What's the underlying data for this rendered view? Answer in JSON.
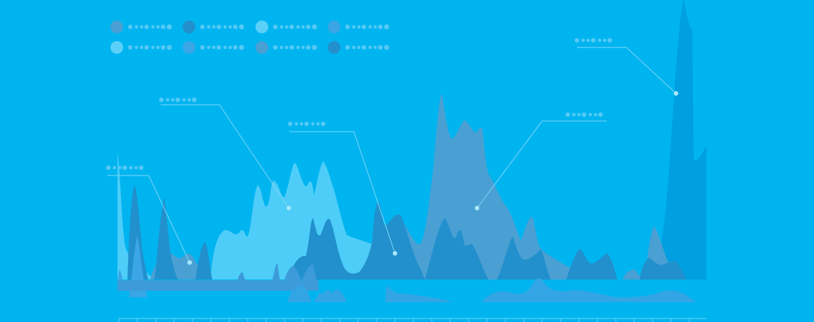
{
  "colors": {
    "background": "#00b4f0",
    "light_area": "#4dcdf8",
    "mid_area": "#4aa0d3",
    "dark_area": "#2290cc",
    "deep_area": "#009fe0",
    "blue_low": "#3aa6e6",
    "baseline_bar": "#3d9bd9",
    "legend_dots": "#55c9f5",
    "callout_line": "#7fd7f7"
  },
  "legend": {
    "items": [
      {
        "color": "#4aa0d3"
      },
      {
        "color": "#2290cc"
      },
      {
        "color": "#5bd0f8"
      },
      {
        "color": "#3aa6e6"
      },
      {
        "color": "#5bd0f8"
      },
      {
        "color": "#3aa6e6"
      },
      {
        "color": "#4aa0d3"
      },
      {
        "color": "#2290cc"
      }
    ]
  },
  "chart_data": {
    "type": "area",
    "title": "",
    "xlabel": "",
    "ylabel": "",
    "grid": false,
    "legend_placement": "top-left",
    "x": [
      1,
      2,
      3,
      4,
      5,
      6,
      7,
      8,
      9,
      10,
      11,
      12,
      13,
      14,
      15,
      16,
      17,
      18,
      19,
      20,
      21,
      22,
      23,
      24,
      25,
      26,
      27,
      28,
      29,
      30,
      31,
      32,
      33
    ],
    "ylim": [
      0,
      100
    ],
    "series": [
      {
        "color": "#4dcdf8",
        "values": [
          50,
          8,
          2,
          5,
          3,
          8,
          20,
          34,
          22,
          42,
          40,
          22,
          16,
          8,
          0,
          0,
          0,
          0,
          0,
          0,
          0,
          0,
          0,
          0,
          0,
          0,
          0,
          0,
          0,
          0,
          0,
          0,
          0
        ]
      },
      {
        "color": "#4aa0d3",
        "values": [
          0,
          0,
          0,
          10,
          9,
          8,
          3,
          0,
          0,
          0,
          0,
          0,
          0,
          16,
          30,
          4,
          68,
          50,
          47,
          30,
          22,
          4,
          24,
          12,
          5,
          0,
          2,
          0,
          3,
          0,
          18,
          6,
          0
        ]
      },
      {
        "color": "#2290cc",
        "values": [
          0,
          35,
          28,
          12,
          14,
          6,
          0,
          0,
          0,
          0,
          0,
          14,
          26,
          6,
          18,
          26,
          4,
          24,
          22,
          0,
          0,
          20,
          10,
          0,
          12,
          10,
          0,
          0,
          0,
          0,
          12,
          8,
          0
        ]
      },
      {
        "color": "#009fe0",
        "values": [
          0,
          0,
          0,
          0,
          0,
          0,
          0,
          0,
          0,
          0,
          0,
          0,
          0,
          0,
          0,
          0,
          0,
          0,
          0,
          0,
          0,
          0,
          0,
          0,
          0,
          0,
          0,
          0,
          0,
          0,
          0,
          100,
          48
        ]
      }
    ],
    "annotations": [
      {
        "series": 1,
        "x_value": 5
      },
      {
        "series": 0,
        "x_value": 10
      },
      {
        "series": 2,
        "x_value": 16
      },
      {
        "series": 1,
        "x_value": 20
      },
      {
        "series": 3,
        "x_value": 32
      }
    ]
  }
}
